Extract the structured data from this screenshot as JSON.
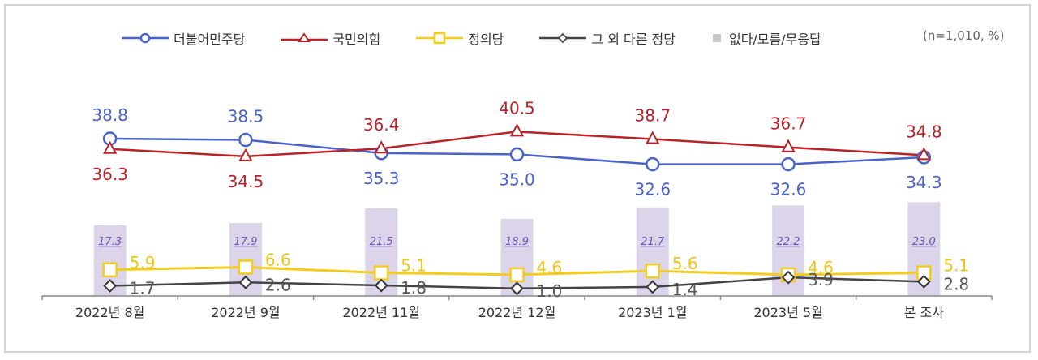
{
  "legend": {
    "items": [
      {
        "label": "더불어민주당",
        "color": "#4a63c9",
        "marker": "circle"
      },
      {
        "label": "국민의힘",
        "color": "#b8232a",
        "marker": "triangle"
      },
      {
        "label": "정의당",
        "color": "#f2cc1e",
        "marker": "square"
      },
      {
        "label": "그 외 다른 정당",
        "color": "#444444",
        "marker": "diamond"
      },
      {
        "label": "없다/모름/무응답",
        "color": "#c8c8c8",
        "marker": "bar"
      }
    ],
    "note": "(n=1,010, %)"
  },
  "chart_data": {
    "type": "line",
    "title": "",
    "xlabel": "",
    "ylabel": "",
    "note": "(n=1,010, %)",
    "categories": [
      "2022년 8월",
      "2022년 9월",
      "2022년 11월",
      "2022년 12월",
      "2023년 1월",
      "2023년 5월",
      "본 조사"
    ],
    "series": [
      {
        "name": "더불어민주당",
        "type": "line",
        "color": "#4a63c9",
        "marker": "circle",
        "values": [
          38.8,
          38.5,
          35.3,
          35.0,
          32.6,
          32.6,
          34.3
        ]
      },
      {
        "name": "국민의힘",
        "type": "line",
        "color": "#b8232a",
        "marker": "triangle",
        "values": [
          36.3,
          34.5,
          36.4,
          40.5,
          38.7,
          36.7,
          34.8
        ]
      },
      {
        "name": "정의당",
        "type": "line",
        "color": "#f2cc1e",
        "marker": "square",
        "values": [
          5.9,
          6.6,
          5.1,
          4.6,
          5.6,
          4.6,
          5.1
        ]
      },
      {
        "name": "그 외 다른 정당",
        "type": "line",
        "color": "#444444",
        "marker": "diamond",
        "values": [
          1.7,
          2.6,
          1.8,
          1.0,
          1.4,
          3.9,
          2.8
        ]
      },
      {
        "name": "없다/모름/무응답",
        "type": "bar",
        "color": "#dcd5ea",
        "label_color": "#6a55b0",
        "values": [
          17.3,
          17.9,
          21.5,
          18.9,
          21.7,
          22.2,
          23.0
        ]
      }
    ],
    "grid": false,
    "legend_position": "top"
  }
}
